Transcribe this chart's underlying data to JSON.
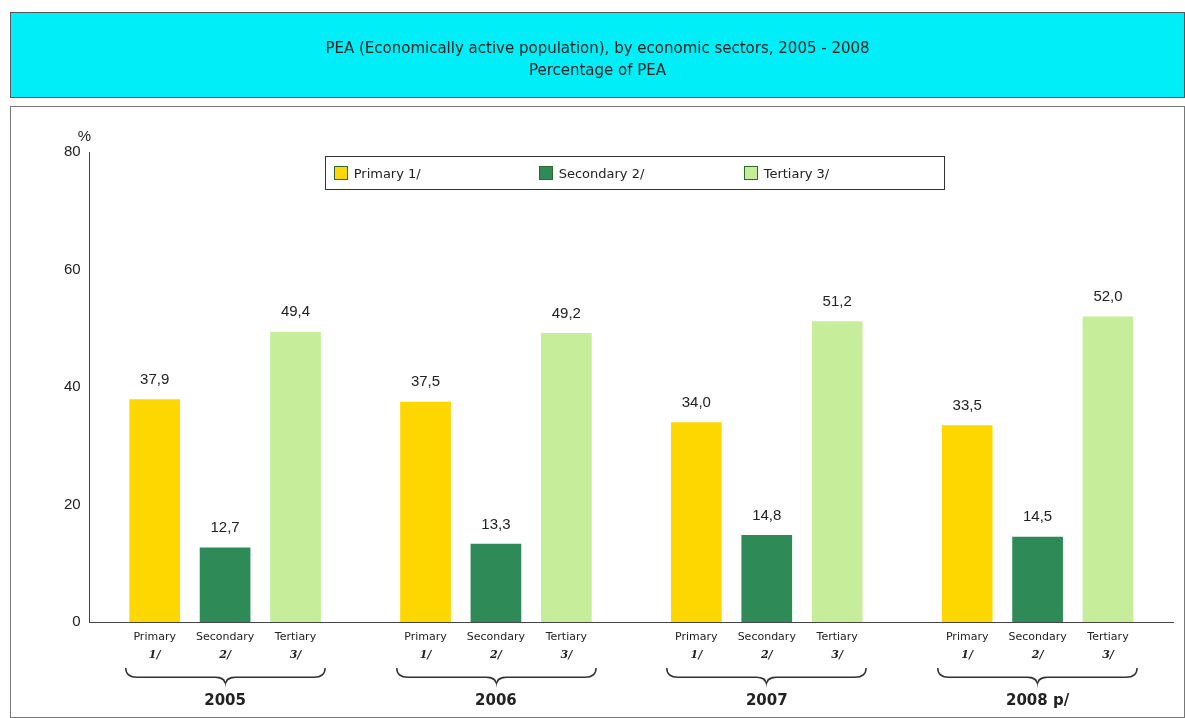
{
  "chart_data": {
    "type": "bar",
    "title": "PEA (Economically active population), by economic sectors, 2005 - 2008",
    "subtitle": "Percentage of PEA",
    "ylabel": "%",
    "categories": [
      "2005",
      "2006",
      "2007",
      "2008 p/"
    ],
    "series": [
      {
        "name": "Primary 1/",
        "color": "#ffd700",
        "values": [
          37.9,
          37.5,
          34.0,
          33.5
        ],
        "value_labels": [
          "37,9",
          "37,5",
          "34,0",
          "33,5"
        ]
      },
      {
        "name": "Secondary 2/",
        "color": "#2e8b57",
        "values": [
          12.7,
          13.3,
          14.8,
          14.5
        ],
        "value_labels": [
          "12,7",
          "13,3",
          "14,8",
          "14,5"
        ]
      },
      {
        "name": "Tertiary 3/",
        "color": "#c6ee9a",
        "values": [
          49.4,
          49.2,
          51.2,
          52.0
        ],
        "value_labels": [
          "49,4",
          "49,2",
          "51,2",
          "52,0"
        ]
      }
    ],
    "ylim": [
      0,
      80
    ],
    "yticks": [
      0,
      20,
      40,
      60,
      80
    ],
    "grid": false,
    "legend": "top"
  }
}
